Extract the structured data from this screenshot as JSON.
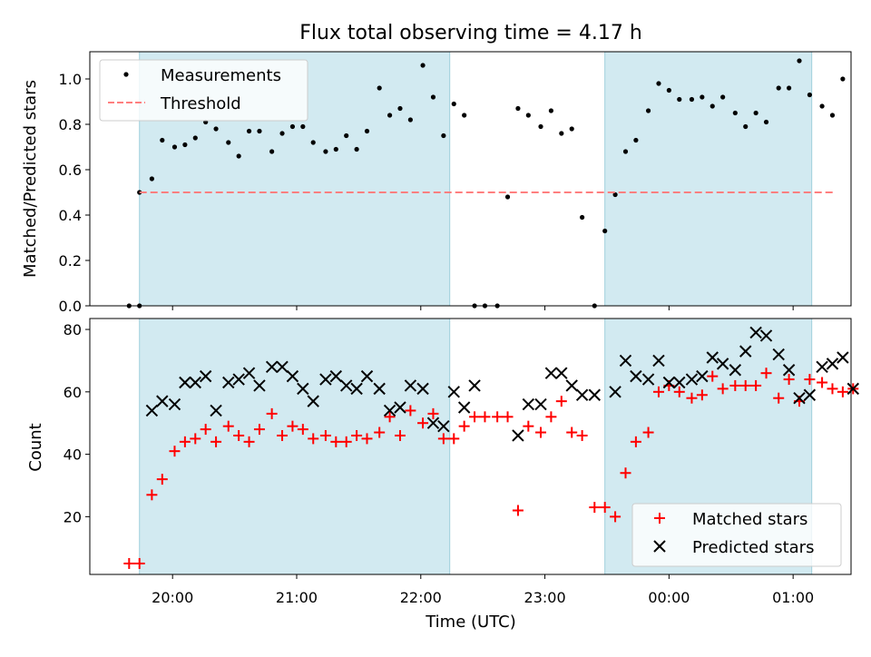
{
  "figure": {
    "title": "Flux total observing time = 4.17 h",
    "xlabel": "Time (UTC)",
    "xticks": [
      "20:00",
      "21:00",
      "22:00",
      "23:00",
      "00:00",
      "01:00"
    ],
    "shaded_periods": [
      [
        "19:44",
        "22:14"
      ],
      [
        "23:29",
        "01:09"
      ]
    ],
    "shade_color": "#add8e6"
  },
  "chart_data": [
    {
      "type": "scatter",
      "ylabel": "Matched/Predicted stars",
      "ylim": [
        0,
        1.12
      ],
      "yticks": [
        "0.0",
        "0.2",
        "0.4",
        "0.6",
        "0.8",
        "1.0"
      ],
      "xlim": [
        "19:20",
        "01:28"
      ],
      "legend_placement": "top-left",
      "series": [
        {
          "name": "Measurements",
          "color": "#000000",
          "marker": "dot",
          "points": [
            [
              "19:39",
              0.0
            ],
            [
              "19:44",
              0.0
            ],
            [
              "19:44",
              0.5
            ],
            [
              "19:50",
              0.56
            ],
            [
              "19:55",
              0.73
            ],
            [
              "20:01",
              0.7
            ],
            [
              "20:06",
              0.71
            ],
            [
              "20:11",
              0.74
            ],
            [
              "20:16",
              0.81
            ],
            [
              "20:21",
              0.78
            ],
            [
              "20:27",
              0.72
            ],
            [
              "20:32",
              0.66
            ],
            [
              "20:37",
              0.77
            ],
            [
              "20:42",
              0.77
            ],
            [
              "20:48",
              0.68
            ],
            [
              "20:53",
              0.76
            ],
            [
              "20:58",
              0.79
            ],
            [
              "21:03",
              0.79
            ],
            [
              "21:08",
              0.72
            ],
            [
              "21:14",
              0.68
            ],
            [
              "21:19",
              0.69
            ],
            [
              "21:24",
              0.75
            ],
            [
              "21:29",
              0.69
            ],
            [
              "21:34",
              0.77
            ],
            [
              "21:40",
              0.96
            ],
            [
              "21:45",
              0.84
            ],
            [
              "21:50",
              0.87
            ],
            [
              "21:55",
              0.82
            ],
            [
              "22:01",
              1.06
            ],
            [
              "22:06",
              0.92
            ],
            [
              "22:11",
              0.75
            ],
            [
              "22:16",
              0.89
            ],
            [
              "22:21",
              0.84
            ],
            [
              "22:26",
              0.0
            ],
            [
              "22:31",
              0.0
            ],
            [
              "22:37",
              0.0
            ],
            [
              "22:42",
              0.48
            ],
            [
              "22:47",
              0.87
            ],
            [
              "22:52",
              0.84
            ],
            [
              "22:58",
              0.79
            ],
            [
              "23:03",
              0.86
            ],
            [
              "23:08",
              0.76
            ],
            [
              "23:13",
              0.78
            ],
            [
              "23:18",
              0.39
            ],
            [
              "23:24",
              0.0
            ],
            [
              "23:29",
              0.33
            ],
            [
              "23:34",
              0.49
            ],
            [
              "23:39",
              0.68
            ],
            [
              "23:44",
              0.73
            ],
            [
              "23:50",
              0.86
            ],
            [
              "23:55",
              0.98
            ],
            [
              "00:00",
              0.95
            ],
            [
              "00:05",
              0.91
            ],
            [
              "00:11",
              0.91
            ],
            [
              "00:16",
              0.92
            ],
            [
              "00:21",
              0.88
            ],
            [
              "00:26",
              0.92
            ],
            [
              "00:32",
              0.85
            ],
            [
              "00:37",
              0.79
            ],
            [
              "00:42",
              0.85
            ],
            [
              "00:47",
              0.81
            ],
            [
              "00:53",
              0.96
            ],
            [
              "00:58",
              0.96
            ],
            [
              "01:03",
              1.08
            ],
            [
              "01:08",
              0.93
            ],
            [
              "01:14",
              0.88
            ],
            [
              "01:19",
              0.84
            ],
            [
              "01:24",
              1.0
            ]
          ]
        },
        {
          "name": "Threshold",
          "color": "#ff7f7f",
          "marker": "dashed-line",
          "points": [
            [
              "19:44",
              0.5
            ],
            [
              "01:20",
              0.5
            ]
          ]
        }
      ]
    },
    {
      "type": "scatter",
      "ylabel": "Count",
      "ylim": [
        1.5,
        83.5
      ],
      "yticks": [
        "20",
        "40",
        "60",
        "80"
      ],
      "xlim": [
        "19:20",
        "01:28"
      ],
      "legend_placement": "bottom-right",
      "series": [
        {
          "name": "Matched stars",
          "color": "#ff0000",
          "marker": "plus",
          "points": [
            [
              "19:39",
              5
            ],
            [
              "19:44",
              5
            ],
            [
              "19:50",
              27
            ],
            [
              "19:55",
              32
            ],
            [
              "20:01",
              41
            ],
            [
              "20:06",
              44
            ],
            [
              "20:11",
              45
            ],
            [
              "20:16",
              48
            ],
            [
              "20:21",
              44
            ],
            [
              "20:27",
              49
            ],
            [
              "20:32",
              46
            ],
            [
              "20:37",
              44
            ],
            [
              "20:42",
              48
            ],
            [
              "20:48",
              53
            ],
            [
              "20:53",
              46
            ],
            [
              "20:58",
              49
            ],
            [
              "21:03",
              48
            ],
            [
              "21:08",
              45
            ],
            [
              "21:14",
              46
            ],
            [
              "21:19",
              44
            ],
            [
              "21:24",
              44
            ],
            [
              "21:29",
              46
            ],
            [
              "21:34",
              45
            ],
            [
              "21:40",
              47
            ],
            [
              "21:45",
              52
            ],
            [
              "21:50",
              46
            ],
            [
              "21:55",
              54
            ],
            [
              "22:01",
              50
            ],
            [
              "22:06",
              53
            ],
            [
              "22:11",
              45
            ],
            [
              "22:16",
              45
            ],
            [
              "22:21",
              49
            ],
            [
              "22:26",
              52
            ],
            [
              "22:31",
              52
            ],
            [
              "22:37",
              52
            ],
            [
              "22:42",
              52
            ],
            [
              "22:47",
              22
            ],
            [
              "22:52",
              49
            ],
            [
              "22:58",
              47
            ],
            [
              "23:03",
              52
            ],
            [
              "23:08",
              57
            ],
            [
              "23:13",
              47
            ],
            [
              "23:18",
              46
            ],
            [
              "23:24",
              23
            ],
            [
              "23:29",
              23
            ],
            [
              "23:34",
              20
            ],
            [
              "23:39",
              34
            ],
            [
              "23:44",
              44
            ],
            [
              "23:50",
              47
            ],
            [
              "23:55",
              60
            ],
            [
              "00:00",
              62
            ],
            [
              "00:05",
              60
            ],
            [
              "00:11",
              58
            ],
            [
              "00:16",
              59
            ],
            [
              "00:21",
              65
            ],
            [
              "00:26",
              61
            ],
            [
              "00:32",
              62
            ],
            [
              "00:37",
              62
            ],
            [
              "00:42",
              62
            ],
            [
              "00:47",
              66
            ],
            [
              "00:53",
              58
            ],
            [
              "00:58",
              64
            ],
            [
              "01:03",
              57
            ],
            [
              "01:08",
              64
            ],
            [
              "01:14",
              63
            ],
            [
              "01:19",
              61
            ],
            [
              "01:24",
              60
            ],
            [
              "01:29",
              61
            ]
          ]
        },
        {
          "name": "Predicted stars",
          "color": "#000000",
          "marker": "x",
          "points": [
            [
              "19:50",
              54
            ],
            [
              "19:55",
              57
            ],
            [
              "20:01",
              56
            ],
            [
              "20:06",
              63
            ],
            [
              "20:11",
              63
            ],
            [
              "20:16",
              65
            ],
            [
              "20:21",
              54
            ],
            [
              "20:27",
              63
            ],
            [
              "20:32",
              64
            ],
            [
              "20:37",
              66
            ],
            [
              "20:42",
              62
            ],
            [
              "20:48",
              68
            ],
            [
              "20:53",
              68
            ],
            [
              "20:58",
              65
            ],
            [
              "21:03",
              61
            ],
            [
              "21:08",
              57
            ],
            [
              "21:14",
              64
            ],
            [
              "21:19",
              65
            ],
            [
              "21:24",
              62
            ],
            [
              "21:29",
              61
            ],
            [
              "21:34",
              65
            ],
            [
              "21:40",
              61
            ],
            [
              "21:45",
              54
            ],
            [
              "21:50",
              55
            ],
            [
              "21:55",
              62
            ],
            [
              "22:01",
              61
            ],
            [
              "22:06",
              50
            ],
            [
              "22:11",
              49
            ],
            [
              "22:16",
              60
            ],
            [
              "22:21",
              55
            ],
            [
              "22:26",
              62
            ],
            [
              "22:47",
              46
            ],
            [
              "22:52",
              56
            ],
            [
              "22:58",
              56
            ],
            [
              "23:03",
              66
            ],
            [
              "23:08",
              66
            ],
            [
              "23:13",
              62
            ],
            [
              "23:18",
              59
            ],
            [
              "23:24",
              59
            ],
            [
              "23:34",
              60
            ],
            [
              "23:39",
              70
            ],
            [
              "23:44",
              65
            ],
            [
              "23:50",
              64
            ],
            [
              "23:55",
              70
            ],
            [
              "00:00",
              63
            ],
            [
              "00:05",
              63
            ],
            [
              "00:11",
              64
            ],
            [
              "00:16",
              65
            ],
            [
              "00:21",
              71
            ],
            [
              "00:26",
              69
            ],
            [
              "00:32",
              67
            ],
            [
              "00:37",
              73
            ],
            [
              "00:42",
              79
            ],
            [
              "00:47",
              78
            ],
            [
              "00:53",
              72
            ],
            [
              "00:58",
              67
            ],
            [
              "01:03",
              58
            ],
            [
              "01:08",
              59
            ],
            [
              "01:14",
              68
            ],
            [
              "01:19",
              69
            ],
            [
              "01:24",
              71
            ],
            [
              "01:29",
              61
            ]
          ]
        }
      ]
    }
  ]
}
